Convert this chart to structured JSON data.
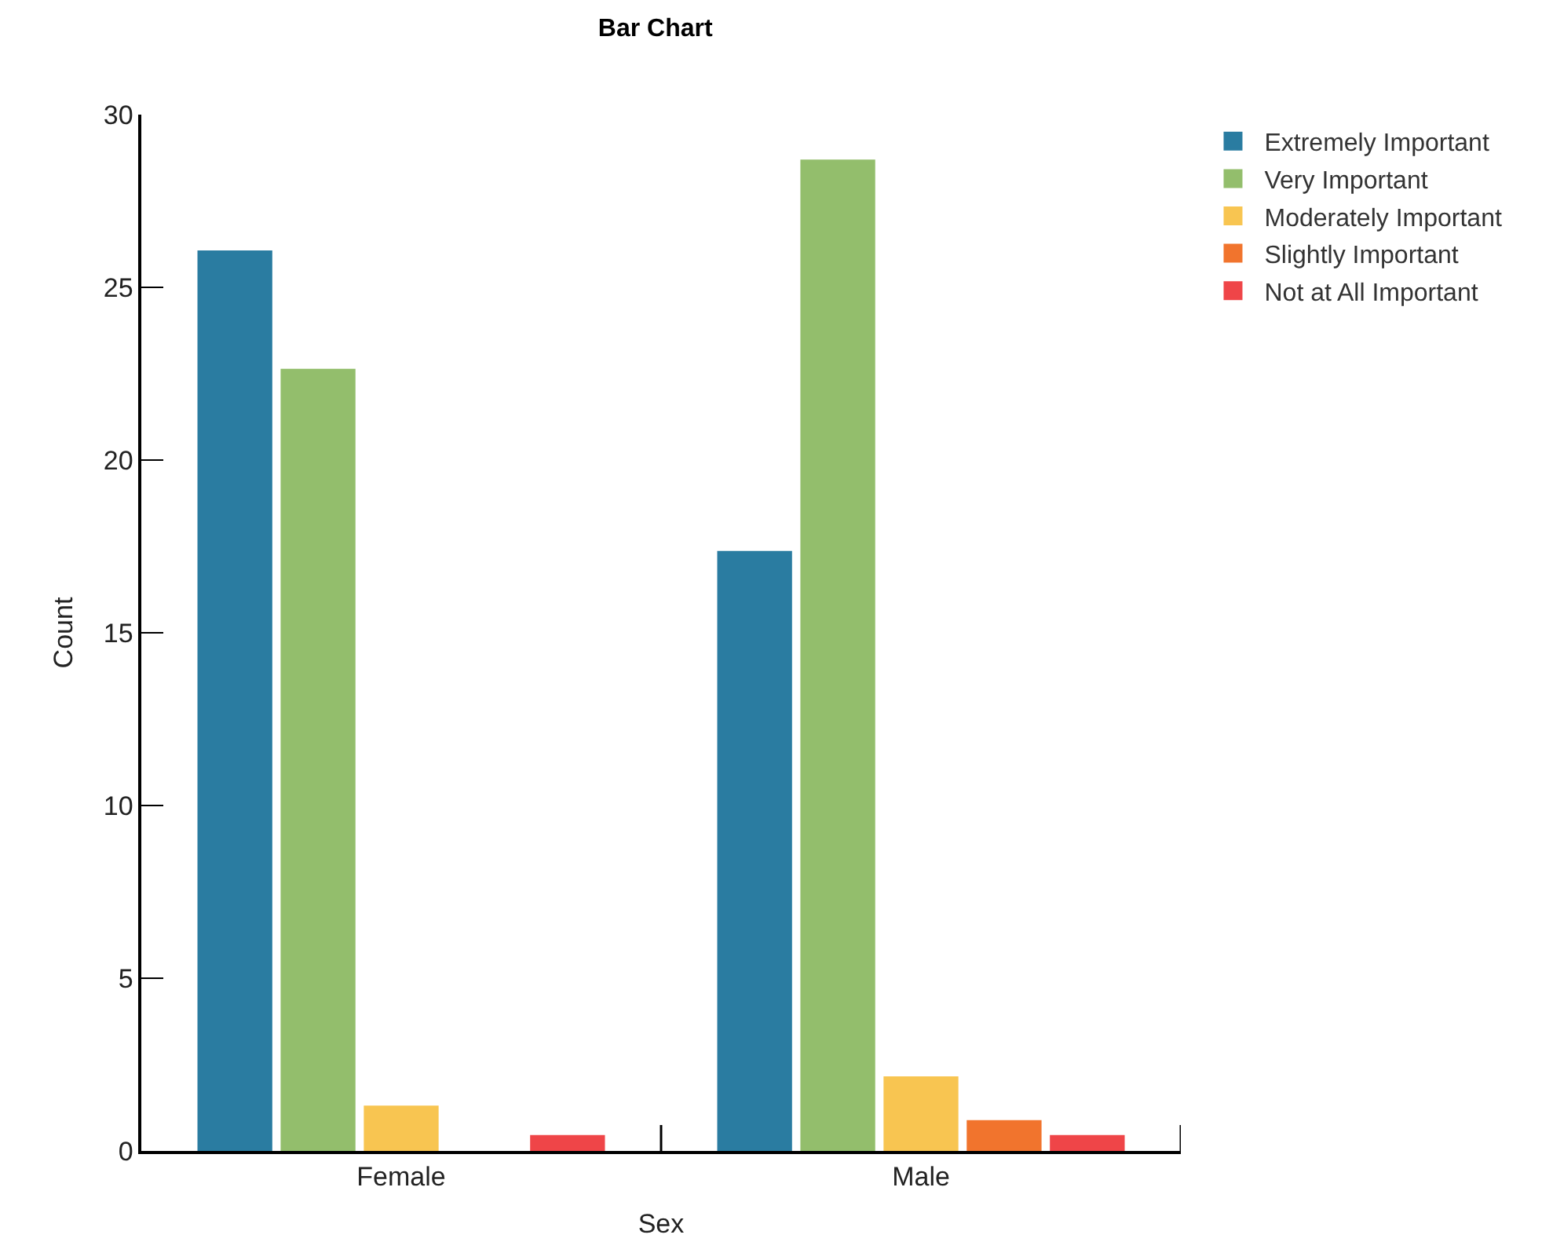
{
  "chart_data": {
    "type": "bar",
    "title": "Bar Chart",
    "xlabel": "Sex",
    "ylabel": "Count",
    "categories": [
      "Female",
      "Male"
    ],
    "series": [
      {
        "name": "Extremely Important",
        "color": "#2a7ca1",
        "values": [
          26.07,
          17.37
        ]
      },
      {
        "name": "Very Important",
        "color": "#93be6c",
        "values": [
          22.64,
          28.7
        ]
      },
      {
        "name": "Moderately Important",
        "color": "#f8c551",
        "values": [
          1.31,
          2.16
        ]
      },
      {
        "name": "Slightly Important",
        "color": "#f1742d",
        "values": [
          0,
          0.89
        ]
      },
      {
        "name": "Not at All Important",
        "color": "#ef4548",
        "values": [
          0.46,
          0.46
        ]
      }
    ],
    "ylim": [
      0,
      30
    ],
    "yticks": [
      0,
      5,
      10,
      15,
      20,
      25,
      30
    ],
    "legend": "top right"
  }
}
